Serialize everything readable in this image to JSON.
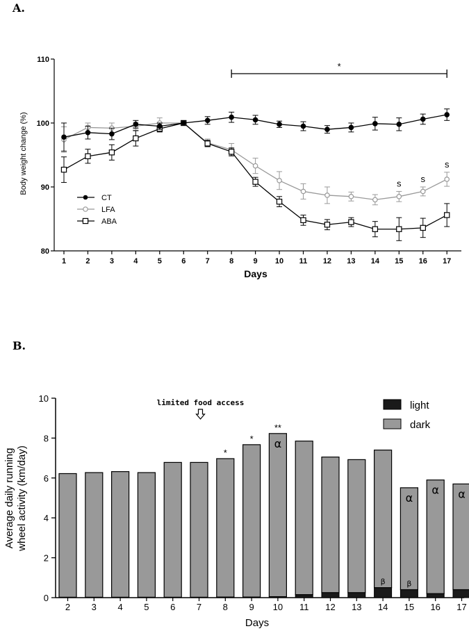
{
  "chart_data": [
    {
      "panel": "A.",
      "type": "line",
      "title": "",
      "xlabel": "Days",
      "ylabel": "Body weight change (%)",
      "x": [
        1,
        2,
        3,
        4,
        5,
        6,
        7,
        8,
        9,
        10,
        11,
        12,
        13,
        14,
        15,
        16,
        17
      ],
      "x_ticks": [
        "1",
        "2",
        "3",
        "4",
        "5",
        "6",
        "7",
        "8",
        "9",
        "10",
        "11",
        "12",
        "13",
        "14",
        "15",
        "16",
        "17"
      ],
      "y_ticks": [
        "80",
        "90",
        "100",
        "110"
      ],
      "ylim": [
        80,
        110
      ],
      "legend_position": "left",
      "series": [
        {
          "name": "CT",
          "marker": "filled-circle",
          "color": "#000000",
          "values": [
            97.8,
            98.5,
            98.3,
            99.8,
            99.5,
            100,
            100.4,
            100.9,
            100.5,
            99.8,
            99.5,
            99.0,
            99.3,
            99.9,
            99.8,
            100.6,
            101.3
          ],
          "errors": [
            2.2,
            1.0,
            0.9,
            0.6,
            0.5,
            0.2,
            0.6,
            0.8,
            0.7,
            0.5,
            0.7,
            0.6,
            0.7,
            1.0,
            1.0,
            0.8,
            0.9
          ]
        },
        {
          "name": "LFA",
          "marker": "open-circle",
          "color": "#999999",
          "values": [
            97.4,
            99.3,
            99.2,
            99.5,
            100.0,
            100,
            96.9,
            95.8,
            93.3,
            91.0,
            89.3,
            88.7,
            88.5,
            88.0,
            88.5,
            89.3,
            91.2
          ],
          "errors": [
            2.0,
            0.7,
            0.8,
            0.6,
            0.8,
            0.2,
            0.6,
            1.0,
            1.2,
            1.4,
            1.2,
            1.3,
            0.7,
            0.8,
            0.8,
            0.7,
            1.1
          ]
        },
        {
          "name": "ABA",
          "marker": "open-square",
          "color": "#000000",
          "values": [
            92.7,
            94.8,
            95.4,
            97.6,
            99.1,
            100,
            96.8,
            95.5,
            90.8,
            87.7,
            84.8,
            84.1,
            84.5,
            83.4,
            83.4,
            83.6,
            85.6
          ],
          "errors": [
            2.0,
            1.1,
            1.2,
            1.2,
            0.5,
            0.2,
            0.5,
            0.6,
            0.7,
            0.8,
            0.8,
            0.8,
            0.7,
            1.2,
            1.8,
            1.5,
            1.8
          ]
        }
      ],
      "significance_bar": {
        "from": 8,
        "to": 17,
        "label": "*"
      },
      "annotations": [
        {
          "x": 15,
          "label": "s"
        },
        {
          "x": 16,
          "label": "s"
        },
        {
          "x": 17,
          "label": "s"
        }
      ]
    },
    {
      "panel": "B.",
      "type": "bar",
      "stacked": true,
      "title": "",
      "xlabel": "Days",
      "ylabel_line1": "Average daily running",
      "ylabel_line2": "wheel activity (km/day)",
      "categories": [
        "2",
        "3",
        "4",
        "5",
        "6",
        "7",
        "8",
        "9",
        "10",
        "11",
        "12",
        "13",
        "14",
        "15",
        "16",
        "17"
      ],
      "y_ticks": [
        "0",
        "2",
        "4",
        "6",
        "8",
        "10"
      ],
      "ylim": [
        0,
        10
      ],
      "legend_position": "top-right",
      "series": [
        {
          "name": "light",
          "color": "#1a1a1a",
          "values": [
            0.02,
            0.02,
            0.02,
            0.02,
            0.02,
            0.02,
            0.03,
            0.03,
            0.05,
            0.15,
            0.25,
            0.25,
            0.5,
            0.4,
            0.2,
            0.4
          ]
        },
        {
          "name": "dark",
          "color": "#999999",
          "values": [
            6.2,
            6.25,
            6.3,
            6.25,
            6.76,
            6.76,
            6.94,
            7.64,
            8.18,
            7.7,
            6.8,
            6.67,
            6.9,
            5.11,
            5.7,
            5.3
          ]
        }
      ],
      "arrow_annotation": {
        "x": "7",
        "label": "limited food access"
      },
      "annotations": [
        {
          "x": "8",
          "label": "*",
          "position": "above"
        },
        {
          "x": "9",
          "label": "*",
          "position": "above"
        },
        {
          "x": "10",
          "label": "**",
          "position": "above"
        },
        {
          "x": "10",
          "label": "α",
          "position": "inside-top"
        },
        {
          "x": "15",
          "label": "α",
          "position": "inside-top"
        },
        {
          "x": "16",
          "label": "α",
          "position": "inside-top"
        },
        {
          "x": "17",
          "label": "α",
          "position": "inside-top"
        },
        {
          "x": "14",
          "label": "β",
          "position": "inside-bottom"
        },
        {
          "x": "15",
          "label": "β",
          "position": "inside-bottom"
        }
      ]
    }
  ]
}
